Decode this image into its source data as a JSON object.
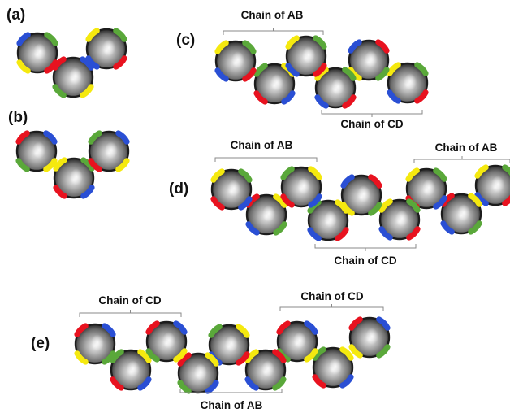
{
  "colors": {
    "patch_colors": [
      "#2a4fd4",
      "#e8121f",
      "#f5e90f",
      "#5aa83a"
    ],
    "particle_light": "#e6e6e6",
    "particle_dark": "#2b2b2b",
    "bracket": "#8a8a8a"
  },
  "panels": {
    "a": {
      "label": "(a)"
    },
    "b": {
      "label": "(b)"
    },
    "c": {
      "label": "(c)",
      "chains": [
        "Chain of AB",
        "Chain of CD"
      ]
    },
    "d": {
      "label": "(d)",
      "chains": [
        "Chain of AB",
        "Chain of AB",
        "Chain of CD"
      ]
    },
    "e": {
      "label": "(e)",
      "chains": [
        "Chain of CD",
        "Chain of CD",
        "Chain of AB"
      ]
    }
  }
}
